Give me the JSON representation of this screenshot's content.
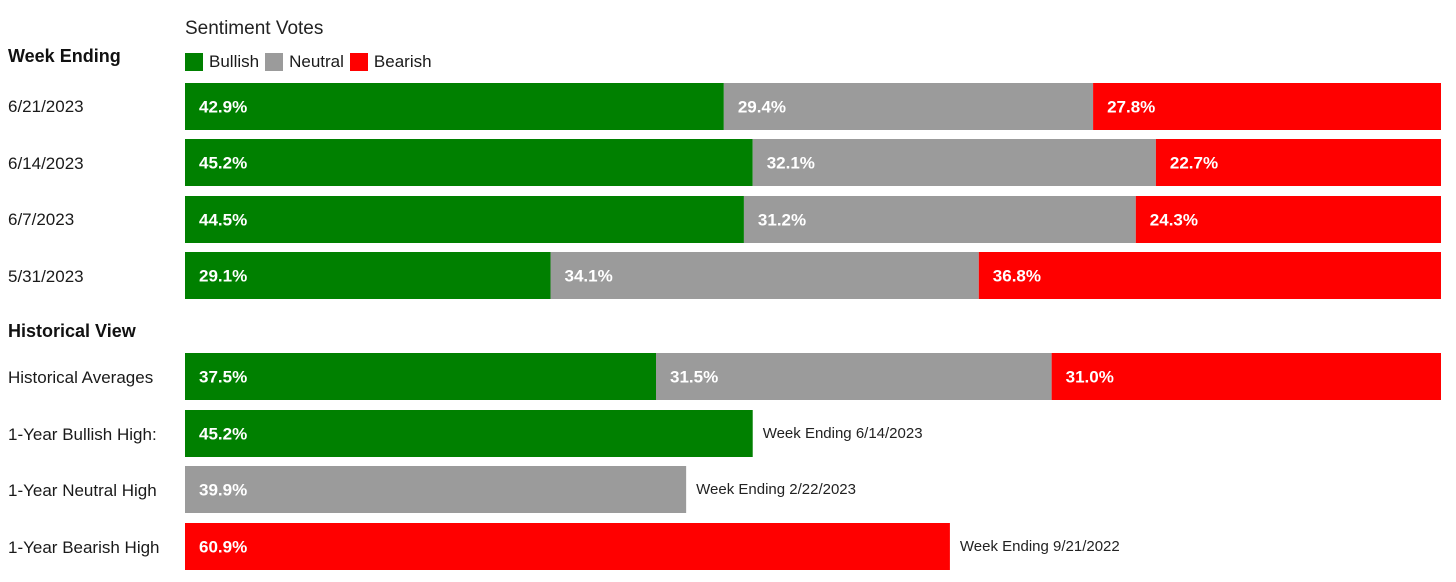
{
  "chart_data": {
    "type": "bar",
    "orientation": "horizontal",
    "stacked": true,
    "title": "Sentiment Votes",
    "row_header": "Week Ending",
    "section_header": "Historical View",
    "legend": [
      {
        "name": "Bullish",
        "color": "#008000"
      },
      {
        "name": "Neutral",
        "color": "#9b9b9b"
      },
      {
        "name": "Bearish",
        "color": "#ff0000"
      }
    ],
    "scale_max": 100,
    "weekly": [
      {
        "label": "6/21/2023",
        "values": [
          42.9,
          29.4,
          27.8
        ],
        "texts": [
          "42.9%",
          "29.4%",
          "27.8%"
        ]
      },
      {
        "label": "6/14/2023",
        "values": [
          45.2,
          32.1,
          22.7
        ],
        "texts": [
          "45.2%",
          "32.1%",
          "22.7%"
        ]
      },
      {
        "label": "6/7/2023",
        "values": [
          44.5,
          31.2,
          24.3
        ],
        "texts": [
          "44.5%",
          "31.2%",
          "24.3%"
        ]
      },
      {
        "label": "5/31/2023",
        "values": [
          29.1,
          34.1,
          36.8
        ],
        "texts": [
          "29.1%",
          "34.1%",
          "36.8%"
        ]
      }
    ],
    "historical_average": {
      "label": "Historical Averages",
      "values": [
        37.5,
        31.5,
        31.0
      ],
      "texts": [
        "37.5%",
        "31.5%",
        "31.0%"
      ]
    },
    "highs": [
      {
        "label": "1-Year Bullish High:",
        "series": "Bullish",
        "value": 45.2,
        "text": "45.2%",
        "note": "Week Ending 6/14/2023"
      },
      {
        "label": "1-Year Neutral High",
        "series": "Neutral",
        "value": 39.9,
        "text": "39.9%",
        "note": "Week Ending 2/22/2023"
      },
      {
        "label": "1-Year Bearish High",
        "series": "Bearish",
        "value": 60.9,
        "text": "60.9%",
        "note": "Week Ending 9/21/2022"
      }
    ]
  }
}
